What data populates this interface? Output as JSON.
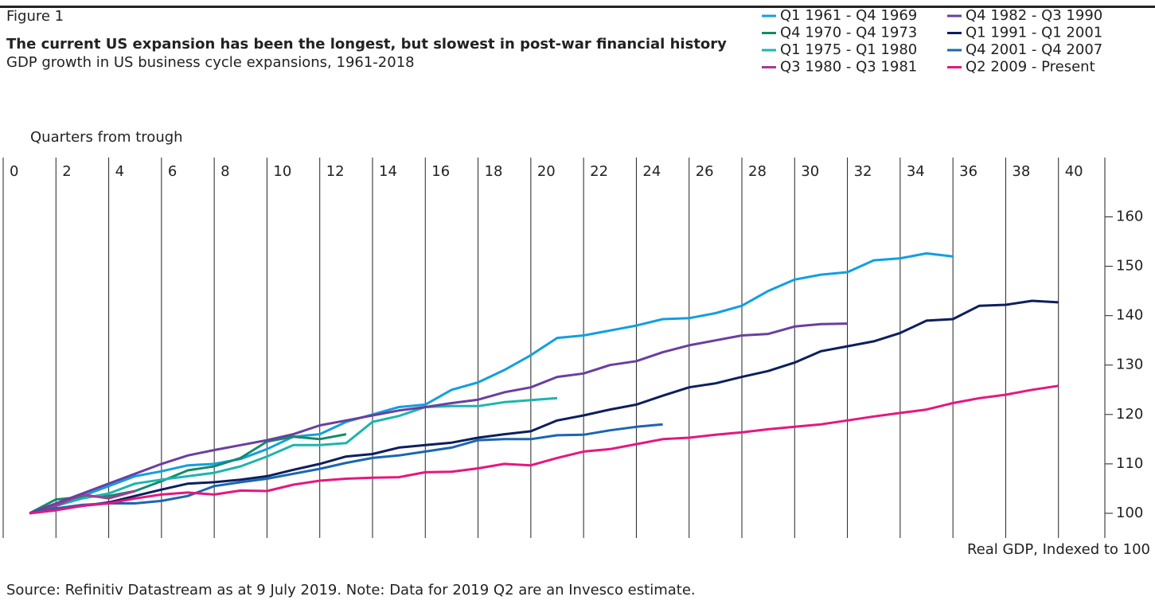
{
  "chart_data": {
    "type": "line",
    "figure_label": "Figure 1",
    "title": "The current US expansion has been the longest, but slowest in post-war financial history",
    "subtitle": "GDP growth in US business cycle expansions, 1961-2018",
    "x_label": "Quarters from trough",
    "y_label": "Real GDP, Indexed to 100",
    "source": "Source: Refinitiv Datastream as at 9 July 2019. Note: Data for 2019 Q2 are an Invesco estimate.",
    "x": [
      1,
      2,
      3,
      4,
      5,
      6,
      7,
      8,
      9,
      10,
      11,
      12,
      13,
      14,
      15,
      16,
      17,
      18,
      19,
      20,
      21,
      22,
      23,
      24,
      25,
      26,
      27,
      28,
      29,
      30,
      31,
      32,
      33,
      34,
      35,
      36,
      37,
      38,
      39,
      40
    ],
    "xlim": [
      0,
      42
    ],
    "xticks": [
      0,
      2,
      4,
      6,
      8,
      10,
      12,
      14,
      16,
      18,
      20,
      22,
      24,
      26,
      28,
      30,
      32,
      34,
      36,
      38,
      40
    ],
    "ylim": [
      95,
      172
    ],
    "yticks": [
      100,
      110,
      120,
      130,
      140,
      150,
      160
    ],
    "grid": true,
    "series": [
      {
        "name": "Q1 1961 - Q4 1969",
        "color": "#129fe0",
        "values": [
          100,
          101.5,
          103.5,
          105.5,
          107.5,
          108.5,
          109.7,
          110,
          111,
          113,
          115.5,
          116,
          118.5,
          120,
          121.5,
          122,
          125,
          126.5,
          129,
          132,
          135.5,
          136,
          137,
          138,
          139.3,
          139.5,
          140.5,
          142,
          145,
          147.3,
          148.3,
          148.8,
          151.2,
          151.6,
          152.6,
          152,
          null,
          null,
          null,
          null
        ]
      },
      {
        "name": "Q4 1970 - Q4 1973",
        "color": "#168a6b",
        "values": [
          100,
          102.8,
          103.3,
          103.5,
          104.5,
          106.5,
          108.7,
          109.5,
          111.2,
          114.5,
          115.5,
          115,
          116,
          null,
          null,
          null,
          null,
          null,
          null,
          null,
          null,
          null,
          null,
          null,
          null,
          null,
          null,
          null,
          null,
          null,
          null,
          null,
          null,
          null,
          null,
          null,
          null,
          null,
          null,
          null
        ]
      },
      {
        "name": "Q1 1975 - Q1 1980",
        "color": "#1db5ae",
        "values": [
          100,
          101.5,
          103,
          104,
          106,
          106.8,
          107.5,
          108.2,
          109.5,
          111.5,
          113.8,
          113.8,
          114.2,
          118.5,
          119.7,
          121.5,
          121.7,
          121.7,
          122.5,
          122.9,
          123.3,
          null,
          null,
          null,
          null,
          null,
          null,
          null,
          null,
          null,
          null,
          null,
          null,
          null,
          null,
          null,
          null,
          null,
          null,
          null
        ]
      },
      {
        "name": "Q3 1980 - Q3 1981",
        "color": "#a23d98",
        "values": [
          100,
          101.5,
          103.8,
          103,
          104.5,
          null,
          null,
          null,
          null,
          null,
          null,
          null,
          null,
          null,
          null,
          null,
          null,
          null,
          null,
          null,
          null,
          null,
          null,
          null,
          null,
          null,
          null,
          null,
          null,
          null,
          null,
          null,
          null,
          null,
          null,
          null,
          null,
          null,
          null,
          null
        ]
      },
      {
        "name": "Q4 1982 - Q3 1990",
        "color": "#6a3f9f",
        "values": [
          100,
          102,
          104,
          106,
          108,
          110,
          111.7,
          112.8,
          113.8,
          114.8,
          116,
          117.8,
          118.8,
          119.8,
          120.8,
          121.5,
          122.3,
          123,
          124.5,
          125.5,
          127.6,
          128.3,
          130,
          130.8,
          132.6,
          134,
          135,
          136,
          136.3,
          137.8,
          138.3,
          138.4,
          null,
          null,
          null,
          null,
          null,
          null,
          null,
          null
        ]
      },
      {
        "name": "Q1 1991 - Q1 2001",
        "color": "#0c1f5e",
        "values": [
          100,
          101,
          101.5,
          102.2,
          103.5,
          104.8,
          106,
          106.3,
          106.8,
          107.5,
          108.8,
          110,
          111.5,
          112,
          113.3,
          113.8,
          114.3,
          115.3,
          116,
          116.6,
          118.8,
          119.8,
          121,
          122,
          123.8,
          125.5,
          126.3,
          127.6,
          128.8,
          130.5,
          132.8,
          133.8,
          134.8,
          136.5,
          139,
          139.3,
          142,
          142.2,
          143,
          142.7
        ]
      },
      {
        "name": "Q4 2001 - Q4 2007",
        "color": "#1b66b0",
        "values": [
          100,
          101,
          101.7,
          102,
          102,
          102.5,
          103.5,
          105.5,
          106.3,
          107,
          108,
          109,
          110.2,
          111.2,
          111.7,
          112.5,
          113.3,
          114.8,
          115,
          115,
          115.8,
          115.9,
          116.8,
          117.5,
          118,
          null,
          null,
          null,
          null,
          null,
          null,
          null,
          null,
          null,
          null,
          null,
          null,
          null,
          null,
          null
        ]
      },
      {
        "name": "Q2 2009 - Present",
        "color": "#e6177f",
        "values": [
          100,
          100.6,
          101.5,
          102,
          103,
          103.8,
          104.2,
          103.8,
          104.6,
          104.5,
          105.8,
          106.6,
          107,
          107.2,
          107.3,
          108.3,
          108.4,
          109.1,
          110,
          109.7,
          111.2,
          112.5,
          113,
          114,
          115,
          115.3,
          115.9,
          116.4,
          117,
          117.5,
          118,
          118.8,
          119.6,
          120.3,
          121,
          122.3,
          123.3,
          124,
          125,
          125.8
        ]
      }
    ]
  }
}
